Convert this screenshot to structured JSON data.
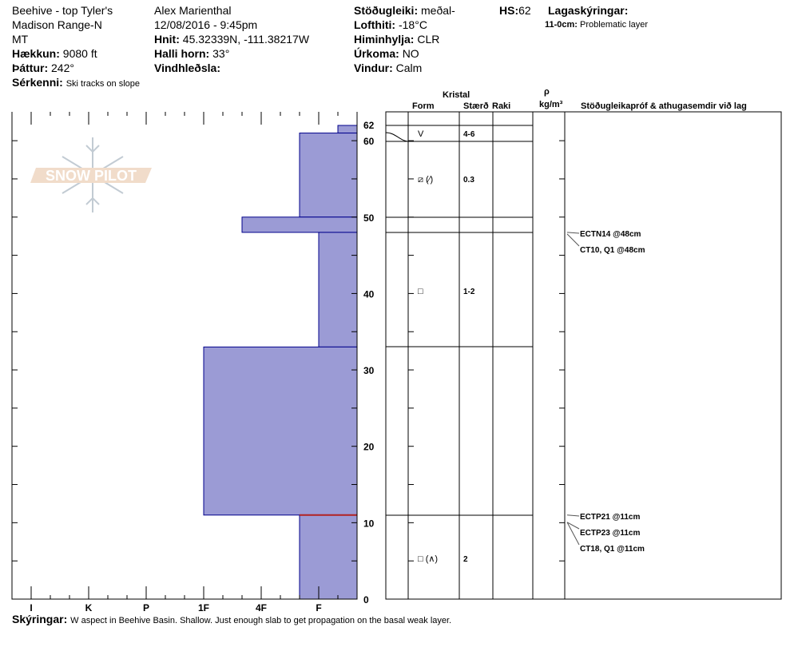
{
  "header": {
    "location": "Beehive - top Tyler's",
    "range": "Madison Range-N",
    "state": "MT",
    "elevation_label": "Hækkun:",
    "elevation": "9080 ft",
    "aspect_label": "Þáttur:",
    "aspect": "242°",
    "features_label": "Sérkenni:",
    "features": "Ski tracks on slope",
    "observer": "Alex Marienthal",
    "datetime": "12/08/2016 - 9:45pm",
    "coords_label": "Hnit:",
    "coords": "45.32339N, -111.38217W",
    "slope_label": "Halli horn:",
    "slope": "33°",
    "wind_loading_label": "Vindhleðsla:",
    "stability_label": "Stöðugleiki:",
    "stability": "meðal-",
    "air_temp_label": "Lofthiti:",
    "air_temp": "-18°C",
    "sky_label": "Himinhylja:",
    "sky": "CLR",
    "precip_label": "Úrkoma:",
    "precip": "NO",
    "wind_label": "Vindur:",
    "wind": "Calm",
    "hs_label": "HS:",
    "hs": "62",
    "layer_notes_label": "Lagaskýringar:",
    "layer_note_range": "11-0cm:",
    "layer_note": "Problematic layer"
  },
  "table_headers": {
    "crystal": "Kristal",
    "form": "Form",
    "size": "Stærð",
    "moisture": "Raki",
    "rho": "ρ",
    "density_unit": "kg/m³",
    "tests": "Stöðugleikapróf & athugasemdir við lag"
  },
  "layers": [
    {
      "top": 62,
      "bottom": 61,
      "hardness": "F-",
      "form": "V",
      "size": "4-6"
    },
    {
      "top": 61,
      "bottom": 50,
      "hardness": "F+",
      "form": "⧄ (⁄)",
      "size": "0.3"
    },
    {
      "top": 50,
      "bottom": 48,
      "hardness": "4F+",
      "form": "",
      "size": ""
    },
    {
      "top": 48,
      "bottom": 33,
      "hardness": "F",
      "form": "□",
      "size": "1-2"
    },
    {
      "top": 33,
      "bottom": 11,
      "hardness": "1F",
      "form": "",
      "size": ""
    },
    {
      "top": 11,
      "bottom": 0,
      "hardness": "F+",
      "form": "□ (∧)",
      "size": "2"
    }
  ],
  "tests": [
    {
      "text": "ECTN14 @48cm",
      "depth": 48
    },
    {
      "text": "CT10, Q1 @48cm",
      "depth": 48
    },
    {
      "text": "ECTP21 @11cm",
      "depth": 11
    },
    {
      "text": "ECTP23 @11cm",
      "depth": 11
    },
    {
      "text": "CT18, Q1 @11cm",
      "depth": 11
    }
  ],
  "chart_data": {
    "type": "bar",
    "orientation": "horizontal",
    "x_categories": [
      "I",
      "K",
      "P",
      "1F",
      "4F",
      "F"
    ],
    "y_ticks": [
      0,
      10,
      20,
      30,
      40,
      50,
      60,
      62
    ],
    "ylim": [
      0,
      62
    ],
    "problem_layer_depth": 11,
    "bar_color": "#9b9bd5",
    "bar_edge": "#00008b",
    "problem_color": "#b22222"
  },
  "logo": "SNOW PILOT",
  "footer": {
    "label": "Skýringar:",
    "text": "W aspect in Beehive Basin. Shallow. Just enough slab to get propagation on the basal weak layer."
  }
}
